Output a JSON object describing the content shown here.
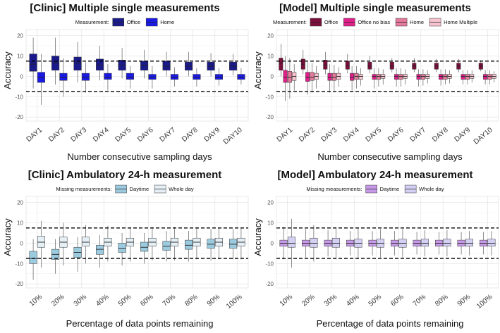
{
  "chart_data": [
    {
      "type": "boxplot",
      "title": "[Clinic] Multiple single measurements",
      "legend_title": "Measurement:",
      "xlabel": "Number consecutive sampling days",
      "ylabel": "Accuracy",
      "ylim": [
        -22,
        23
      ],
      "yticks": [
        -20,
        -10,
        0,
        10,
        20
      ],
      "reference_lines": [
        7.5,
        -7.5
      ],
      "categories": [
        "DAY1",
        "DAY2",
        "DAY3",
        "DAY4",
        "DAY5",
        "DAY6",
        "DAY7",
        "DAY8",
        "DAY9",
        "DAY10"
      ],
      "series": [
        {
          "name": "Office",
          "color": "#1a1a8a",
          "boxes": [
            {
              "min": -6,
              "q1": 2.5,
              "median": 6,
              "q3": 11,
              "max": 19
            },
            {
              "min": -4,
              "q1": 3,
              "median": 6.5,
              "q3": 10,
              "max": 19
            },
            {
              "min": -3,
              "q1": 3,
              "median": 6.5,
              "q3": 9.5,
              "max": 17
            },
            {
              "min": -2,
              "q1": 3,
              "median": 5.5,
              "q3": 8.5,
              "max": 15
            },
            {
              "min": -1,
              "q1": 3,
              "median": 5.5,
              "q3": 8,
              "max": 14
            },
            {
              "min": -1,
              "q1": 3,
              "median": 5.5,
              "q3": 7.5,
              "max": 13
            },
            {
              "min": 0,
              "q1": 3,
              "median": 5,
              "q3": 7.5,
              "max": 12
            },
            {
              "min": 0,
              "q1": 3,
              "median": 5,
              "q3": 7,
              "max": 12
            },
            {
              "min": 0,
              "q1": 3,
              "median": 5,
              "q3": 7,
              "max": 11.5
            },
            {
              "min": 0.5,
              "q1": 3,
              "median": 5,
              "q3": 7,
              "max": 11
            }
          ]
        },
        {
          "name": "Home",
          "color": "#1a1ae6",
          "boxes": [
            {
              "min": -14,
              "q1": -3,
              "median": -0.5,
              "q3": 2,
              "max": 11
            },
            {
              "min": -10,
              "q1": -2,
              "median": -0.5,
              "q3": 1.5,
              "max": 9
            },
            {
              "min": -8,
              "q1": -2,
              "median": -0.5,
              "q3": 1.5,
              "max": 7
            },
            {
              "min": -7,
              "q1": -1.5,
              "median": -0.5,
              "q3": 1.5,
              "max": 6
            },
            {
              "min": -6,
              "q1": -1.5,
              "median": -0.5,
              "q3": 1.5,
              "max": 5
            },
            {
              "min": -6,
              "q1": -1.5,
              "median": -0.5,
              "q3": 1,
              "max": 5
            },
            {
              "min": -5,
              "q1": -1.5,
              "median": -0.5,
              "q3": 1,
              "max": 4.5
            },
            {
              "min": -5,
              "q1": -1.5,
              "median": -0.5,
              "q3": 1,
              "max": 4
            },
            {
              "min": -4.5,
              "q1": -1.5,
              "median": -0.5,
              "q3": 1,
              "max": 4
            },
            {
              "min": -4,
              "q1": -1.5,
              "median": -0.5,
              "q3": 1,
              "max": 4
            }
          ]
        }
      ]
    },
    {
      "type": "boxplot",
      "title": "[Model] Multiple single measurements",
      "legend_title": "Measurement:",
      "xlabel": "Number consecutive sampling days",
      "ylabel": "Accuracy",
      "ylim": [
        -22,
        23
      ],
      "yticks": [
        -20,
        -10,
        0,
        10,
        20
      ],
      "reference_lines": [
        7.5,
        -7.5
      ],
      "categories": [
        "DAY1",
        "DAY2",
        "DAY3",
        "DAY4",
        "DAY5",
        "DAY6",
        "DAY7",
        "DAY8",
        "DAY9",
        "DAY10"
      ],
      "series": [
        {
          "name": "Office",
          "color": "#7a0f3c",
          "boxes": [
            {
              "min": 0,
              "q1": 3,
              "median": 6.5,
              "q3": 9,
              "max": 16
            },
            {
              "min": 1,
              "q1": 3.5,
              "median": 6,
              "q3": 8.5,
              "max": 13
            },
            {
              "min": 1,
              "q1": 3.5,
              "median": 5.5,
              "q3": 8,
              "max": 12
            },
            {
              "min": 1.5,
              "q1": 3.5,
              "median": 5.5,
              "q3": 7.5,
              "max": 11
            },
            {
              "min": 1.5,
              "q1": 3.5,
              "median": 5,
              "q3": 7,
              "max": 10
            },
            {
              "min": 2,
              "q1": 3.5,
              "median": 5,
              "q3": 7,
              "max": 9
            },
            {
              "min": 2,
              "q1": 3.5,
              "median": 5,
              "q3": 6.5,
              "max": 9
            },
            {
              "min": 2,
              "q1": 3.5,
              "median": 5,
              "q3": 6.5,
              "max": 8.5
            },
            {
              "min": 2,
              "q1": 3.5,
              "median": 5,
              "q3": 6.5,
              "max": 8.5
            },
            {
              "min": 2.5,
              "q1": 3.5,
              "median": 5,
              "q3": 6.5,
              "max": 8
            }
          ]
        },
        {
          "name": "Office no bias",
          "color": "#e0208a",
          "boxes": [
            {
              "min": -12,
              "q1": -3,
              "median": -0.5,
              "q3": 3,
              "max": 10
            },
            {
              "min": -9,
              "q1": -2.5,
              "median": -0.5,
              "q3": 2,
              "max": 7
            },
            {
              "min": -8,
              "q1": -2,
              "median": -0.5,
              "q3": 1.5,
              "max": 6
            },
            {
              "min": -7,
              "q1": -2,
              "median": -0.5,
              "q3": 1.5,
              "max": 5
            },
            {
              "min": -6,
              "q1": -1.5,
              "median": 0,
              "q3": 1,
              "max": 4
            },
            {
              "min": -5,
              "q1": -1.5,
              "median": 0,
              "q3": 1,
              "max": 4
            },
            {
              "min": -5,
              "q1": -1.5,
              "median": 0,
              "q3": 1,
              "max": 3.5
            },
            {
              "min": -4.5,
              "q1": -1.5,
              "median": 0,
              "q3": 1,
              "max": 3.5
            },
            {
              "min": -4,
              "q1": -1.5,
              "median": 0,
              "q3": 1,
              "max": 3
            },
            {
              "min": -4,
              "q1": -1.5,
              "median": 0,
              "q3": 1,
              "max": 3
            }
          ]
        },
        {
          "name": "Home",
          "color": "#e47a9c",
          "boxes": [
            {
              "min": -11,
              "q1": -3,
              "median": -0.5,
              "q3": 2.5,
              "max": 9
            },
            {
              "min": -8,
              "q1": -2,
              "median": -0.5,
              "q3": 2,
              "max": 6.5
            },
            {
              "min": -7,
              "q1": -2,
              "median": -0.5,
              "q3": 1.5,
              "max": 5.5
            },
            {
              "min": -6,
              "q1": -1.5,
              "median": 0,
              "q3": 1.5,
              "max": 5
            },
            {
              "min": -5,
              "q1": -1.5,
              "median": 0,
              "q3": 1,
              "max": 4
            },
            {
              "min": -5,
              "q1": -1.5,
              "median": 0,
              "q3": 1,
              "max": 4
            },
            {
              "min": -4.5,
              "q1": -1.5,
              "median": 0,
              "q3": 1,
              "max": 3.5
            },
            {
              "min": -4,
              "q1": -1.5,
              "median": 0,
              "q3": 1,
              "max": 3.5
            },
            {
              "min": -4,
              "q1": -1.5,
              "median": 0,
              "q3": 1,
              "max": 3
            },
            {
              "min": -4,
              "q1": -1.5,
              "median": 0,
              "q3": 1,
              "max": 3
            }
          ]
        },
        {
          "name": "Home Multiple",
          "color": "#f6c3cf",
          "boxes": [
            {
              "min": -7,
              "q1": -2,
              "median": 0,
              "q3": 2,
              "max": 6
            },
            {
              "min": -6,
              "q1": -1.5,
              "median": 0,
              "q3": 1.5,
              "max": 5
            },
            {
              "min": -5,
              "q1": -1.5,
              "median": 0,
              "q3": 1.5,
              "max": 4.5
            },
            {
              "min": -4.5,
              "q1": -1.5,
              "median": 0,
              "q3": 1,
              "max": 4
            },
            {
              "min": -4,
              "q1": -1,
              "median": 0,
              "q3": 1,
              "max": 3.5
            },
            {
              "min": -4,
              "q1": -1,
              "median": 0,
              "q3": 1,
              "max": 3.5
            },
            {
              "min": -3.5,
              "q1": -1,
              "median": 0,
              "q3": 1,
              "max": 3
            },
            {
              "min": -3.5,
              "q1": -1,
              "median": 0,
              "q3": 1,
              "max": 3
            },
            {
              "min": -3,
              "q1": -1,
              "median": 0,
              "q3": 1,
              "max": 3
            },
            {
              "min": -3,
              "q1": -1,
              "median": 0,
              "q3": 1,
              "max": 2.5
            }
          ]
        }
      ]
    },
    {
      "type": "boxplot",
      "title": "[Clinic] Ambulatory 24-h measurement",
      "legend_title": "Missing measurements:",
      "xlabel": "Percentage of data points remaining",
      "ylabel": "Accuracy",
      "ylim": [
        -22,
        23
      ],
      "yticks": [
        -20,
        -10,
        0,
        10,
        20
      ],
      "reference_lines": [
        7.5,
        -7.5
      ],
      "categories": [
        "10%",
        "20%",
        "30%",
        "40%",
        "50%",
        "60%",
        "70%",
        "80%",
        "90%",
        "100%"
      ],
      "series": [
        {
          "name": "Daytime",
          "color": "#9ccbe0",
          "boxes": [
            {
              "min": -18,
              "q1": -10,
              "median": -7.5,
              "q3": -4,
              "max": 2
            },
            {
              "min": -15,
              "q1": -8,
              "median": -5.5,
              "q3": -3,
              "max": 2
            },
            {
              "min": -14,
              "q1": -7,
              "median": -4.5,
              "q3": -2,
              "max": 3
            },
            {
              "min": -12,
              "q1": -5.5,
              "median": -3,
              "q3": -1,
              "max": 4
            },
            {
              "min": -11,
              "q1": -4.5,
              "median": -2.5,
              "q3": 0,
              "max": 5
            },
            {
              "min": -10,
              "q1": -4,
              "median": -2,
              "q3": 0.5,
              "max": 5
            },
            {
              "min": -9,
              "q1": -3.5,
              "median": -1.5,
              "q3": 1,
              "max": 6
            },
            {
              "min": -9,
              "q1": -3,
              "median": -1,
              "q3": 1.5,
              "max": 6
            },
            {
              "min": -8.5,
              "q1": -2.5,
              "median": -0.5,
              "q3": 2,
              "max": 7
            },
            {
              "min": -8,
              "q1": -2.5,
              "median": -0.5,
              "q3": 2,
              "max": 7
            }
          ]
        },
        {
          "name": "Whole day",
          "color": "#e4eff6",
          "boxes": [
            {
              "min": -12,
              "q1": -2,
              "median": 0.5,
              "q3": 3.5,
              "max": 11
            },
            {
              "min": -11,
              "q1": -2,
              "median": 0.5,
              "q3": 3,
              "max": 10
            },
            {
              "min": -10,
              "q1": -1.5,
              "median": 0.5,
              "q3": 3,
              "max": 9
            },
            {
              "min": -9,
              "q1": -1.5,
              "median": 0.5,
              "q3": 2.5,
              "max": 8.5
            },
            {
              "min": -9,
              "q1": -1.5,
              "median": 0.5,
              "q3": 2.5,
              "max": 8
            },
            {
              "min": -8.5,
              "q1": -1.5,
              "median": 0.5,
              "q3": 2.5,
              "max": 8
            },
            {
              "min": -8.5,
              "q1": -1.5,
              "median": 0.5,
              "q3": 2.5,
              "max": 8
            },
            {
              "min": -8,
              "q1": -1.5,
              "median": 0.5,
              "q3": 2.5,
              "max": 7.5
            },
            {
              "min": -8,
              "q1": -1.5,
              "median": 0.5,
              "q3": 2.5,
              "max": 7.5
            },
            {
              "min": -8,
              "q1": -1.5,
              "median": 0.5,
              "q3": 2.5,
              "max": 7.5
            }
          ]
        }
      ]
    },
    {
      "type": "boxplot",
      "title": "[Model] Ambulatory 24-h measurement",
      "legend_title": "Missing measurements:",
      "xlabel": "Percentage of data points remaining",
      "ylabel": "Accuracy",
      "ylim": [
        -22,
        23
      ],
      "yticks": [
        -20,
        -10,
        0,
        10,
        20
      ],
      "reference_lines": [
        7.5,
        -7.5
      ],
      "categories": [
        "10%",
        "20%",
        "30%",
        "40%",
        "50%",
        "60%",
        "70%",
        "80%",
        "90%",
        "100%"
      ],
      "series": [
        {
          "name": "Daytime",
          "color": "#c79ae8",
          "boxes": [
            {
              "min": -8,
              "q1": -1.5,
              "median": 0,
              "q3": 1.5,
              "max": 8
            },
            {
              "min": -7,
              "q1": -1.5,
              "median": 0,
              "q3": 1.5,
              "max": 7
            },
            {
              "min": -6.5,
              "q1": -1.5,
              "median": 0,
              "q3": 1.5,
              "max": 6.5
            },
            {
              "min": -6,
              "q1": -1.5,
              "median": 0,
              "q3": 1.5,
              "max": 6
            },
            {
              "min": -6,
              "q1": -1.5,
              "median": 0,
              "q3": 1.5,
              "max": 6
            },
            {
              "min": -6,
              "q1": -1.5,
              "median": 0,
              "q3": 1.5,
              "max": 6
            },
            {
              "min": -5.5,
              "q1": -1.5,
              "median": 0,
              "q3": 1.5,
              "max": 5.5
            },
            {
              "min": -5.5,
              "q1": -1.5,
              "median": 0,
              "q3": 1.5,
              "max": 5.5
            },
            {
              "min": -5.5,
              "q1": -1.5,
              "median": 0,
              "q3": 1.5,
              "max": 5.5
            },
            {
              "min": -5.5,
              "q1": -1.5,
              "median": 0,
              "q3": 1.5,
              "max": 5.5
            }
          ]
        },
        {
          "name": "Whole day",
          "color": "#d3d0f4",
          "boxes": [
            {
              "min": -12,
              "q1": -2,
              "median": 0,
              "q3": 3,
              "max": 12
            },
            {
              "min": -9,
              "q1": -2,
              "median": 0,
              "q3": 2.5,
              "max": 9
            },
            {
              "min": -8,
              "q1": -2,
              "median": 0,
              "q3": 2.5,
              "max": 8
            },
            {
              "min": -7.5,
              "q1": -2,
              "median": 0,
              "q3": 2,
              "max": 7.5
            },
            {
              "min": -7,
              "q1": -2,
              "median": 0,
              "q3": 2,
              "max": 7
            },
            {
              "min": -7,
              "q1": -2,
              "median": 0,
              "q3": 2,
              "max": 7
            },
            {
              "min": -6.5,
              "q1": -1.5,
              "median": 0,
              "q3": 2,
              "max": 6.5
            },
            {
              "min": -6.5,
              "q1": -1.5,
              "median": 0,
              "q3": 2,
              "max": 6.5
            },
            {
              "min": -6,
              "q1": -1.5,
              "median": 0,
              "q3": 2,
              "max": 6
            },
            {
              "min": -6,
              "q1": -1.5,
              "median": 0,
              "q3": 2,
              "max": 6
            }
          ]
        }
      ]
    }
  ]
}
